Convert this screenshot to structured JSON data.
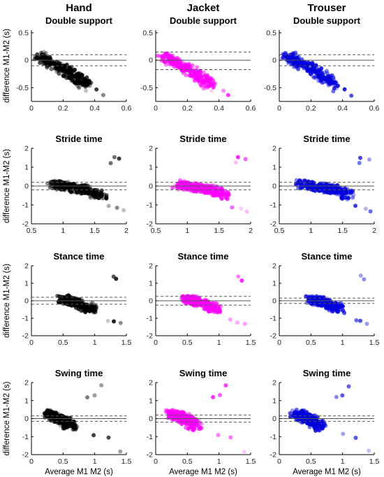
{
  "columns": [
    "Hand",
    "Jacket",
    "Trouser"
  ],
  "ylabel": "difference M1-M2 (s)",
  "xlabel": "Average M1 M2 (s)",
  "colors": {
    "Hand": "#000000",
    "Jacket": "#ff00ff",
    "Trouser": "#0000dd"
  },
  "chart_data": [
    {
      "type": "scatter",
      "title": "Double support",
      "xlim": [
        0,
        0.6
      ],
      "ylim": [
        -0.75,
        0.55
      ],
      "xticks": [
        0,
        0.2,
        0.4,
        0.6
      ],
      "yticks": [
        -0.5,
        0,
        0.5
      ],
      "cloud": [
        [
          0.05,
          0.1
        ],
        [
          0.12,
          -0.05
        ],
        [
          0.2,
          -0.15
        ],
        [
          0.28,
          -0.3
        ],
        [
          0.34,
          -0.45
        ]
      ],
      "bands": {
        "Hand": [
          0,
          0.1,
          -0.1
        ],
        "Jacket": [
          0,
          0.15,
          -0.17
        ],
        "Trouser": [
          0,
          0.1,
          -0.1
        ]
      },
      "extra": [
        [
          0.42,
          -0.55
        ],
        [
          0.45,
          -0.65
        ],
        [
          0.35,
          -0.55
        ]
      ]
    },
    {
      "type": "scatter",
      "title": "Stride time",
      "xlim": [
        0.5,
        2
      ],
      "ylim": [
        -2,
        2
      ],
      "xticks": [
        0.5,
        1,
        1.5,
        2
      ],
      "yticks": [
        -2,
        -1,
        0,
        1,
        2
      ],
      "cloud": [
        [
          0.85,
          0.1
        ],
        [
          1.0,
          0.0
        ],
        [
          1.2,
          -0.1
        ],
        [
          1.4,
          -0.2
        ],
        [
          1.6,
          -0.5
        ]
      ],
      "bands": {
        "Hand": [
          0,
          0.2,
          -0.2
        ],
        "Jacket": [
          0,
          0.2,
          -0.2
        ],
        "Trouser": [
          0,
          0.2,
          -0.2
        ]
      },
      "extra": [
        [
          1.8,
          1.5
        ],
        [
          1.9,
          1.4
        ],
        [
          1.7,
          -1.1
        ],
        [
          1.85,
          -1.2
        ],
        [
          1.95,
          -1.3
        ],
        [
          1.75,
          1.2
        ]
      ]
    },
    {
      "type": "scatter",
      "title": "Stance time",
      "xlim": [
        0,
        1.5
      ],
      "ylim": [
        -2,
        2
      ],
      "xticks": [
        0,
        0.5,
        1,
        1.5
      ],
      "yticks": [
        -2,
        -1,
        0,
        1,
        2
      ],
      "cloud": [
        [
          0.5,
          0.1
        ],
        [
          0.6,
          0.0
        ],
        [
          0.7,
          -0.1
        ],
        [
          0.85,
          -0.3
        ],
        [
          0.95,
          -0.5
        ]
      ],
      "bands": {
        "Hand": [
          0,
          0.2,
          -0.2
        ],
        "Jacket": [
          0,
          0.25,
          -0.25
        ],
        "Trouser": [
          0,
          0.15,
          -0.15
        ]
      },
      "extra": [
        [
          1.3,
          1.4
        ],
        [
          1.35,
          1.2
        ],
        [
          1.2,
          -1.1
        ],
        [
          1.3,
          -1.2
        ],
        [
          1.4,
          -1.3
        ]
      ]
    },
    {
      "type": "scatter",
      "title": "Swing time",
      "xlim": [
        0,
        1.5
      ],
      "ylim": [
        -2,
        2
      ],
      "xticks": [
        0,
        0.5,
        1,
        1.5
      ],
      "yticks": [
        -2,
        -1,
        0,
        1,
        2
      ],
      "cloud": [
        [
          0.25,
          0.3
        ],
        [
          0.35,
          0.15
        ],
        [
          0.45,
          0.0
        ],
        [
          0.55,
          -0.2
        ],
        [
          0.65,
          -0.5
        ]
      ],
      "bands": {
        "Hand": [
          0,
          0.15,
          -0.15
        ],
        "Jacket": [
          0,
          0.2,
          -0.2
        ],
        "Trouser": [
          0,
          0.15,
          -0.15
        ]
      },
      "extra": [
        [
          1.1,
          1.8
        ],
        [
          1.0,
          1.3
        ],
        [
          0.9,
          1.2
        ],
        [
          1.0,
          -0.9
        ],
        [
          1.2,
          -1.1
        ],
        [
          1.4,
          -1.8
        ]
      ]
    }
  ]
}
